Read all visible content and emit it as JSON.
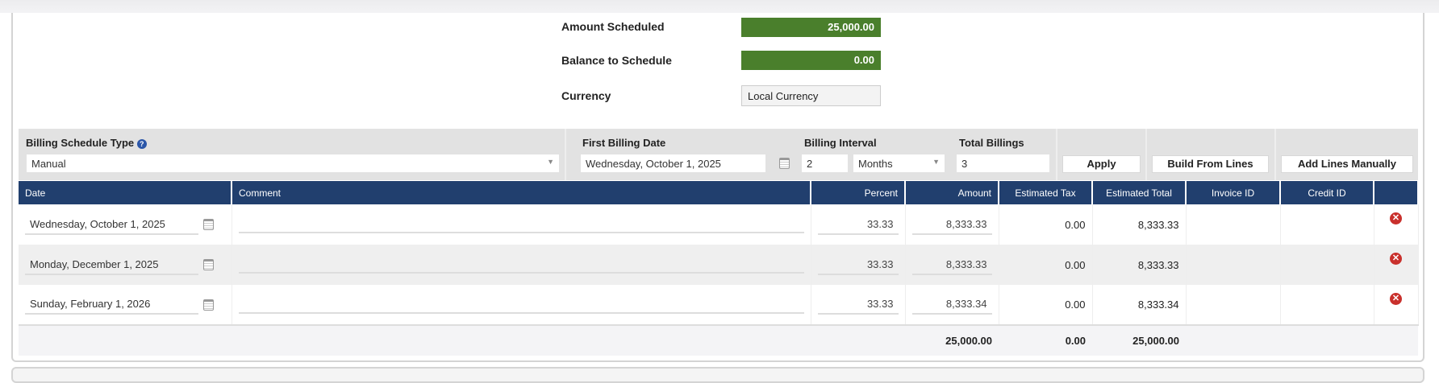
{
  "summary": {
    "amount_scheduled_label": "Amount Scheduled",
    "amount_scheduled": "25,000.00",
    "balance_label": "Balance to Schedule",
    "balance": "0.00",
    "currency_label": "Currency",
    "currency": "Local Currency"
  },
  "filters": {
    "type_label": "Billing Schedule Type",
    "type_value": "Manual",
    "first_date_label": "First Billing Date",
    "first_date": "Wednesday, October 1, 2025",
    "interval_label": "Billing Interval",
    "interval_value": "2",
    "interval_unit": "Months",
    "total_label": "Total Billings",
    "total_value": "3",
    "apply": "Apply",
    "build": "Build From Lines",
    "add": "Add Lines Manually"
  },
  "colors": {
    "header": "#213f6e",
    "green": "#4a7f2c",
    "delete": "#c9302c"
  },
  "table": {
    "headers": [
      "Date",
      "Comment",
      "Percent",
      "Amount",
      "Estimated Tax",
      "Estimated Total",
      "Invoice ID",
      "Credit ID"
    ],
    "rows": [
      {
        "date": "Wednesday, October 1, 2025",
        "comment": "",
        "percent": "33.33",
        "amount": "8,333.33",
        "tax": "0.00",
        "total": "8,333.33",
        "invoice": "",
        "credit": ""
      },
      {
        "date": "Monday, December 1, 2025",
        "comment": "",
        "percent": "33.33",
        "amount": "8,333.33",
        "tax": "0.00",
        "total": "8,333.33",
        "invoice": "",
        "credit": ""
      },
      {
        "date": "Sunday, February 1, 2026",
        "comment": "",
        "percent": "33.33",
        "amount": "8,333.34",
        "tax": "0.00",
        "total": "8,333.34",
        "invoice": "",
        "credit": ""
      }
    ],
    "totals": {
      "amount": "25,000.00",
      "tax": "0.00",
      "total": "25,000.00"
    }
  }
}
